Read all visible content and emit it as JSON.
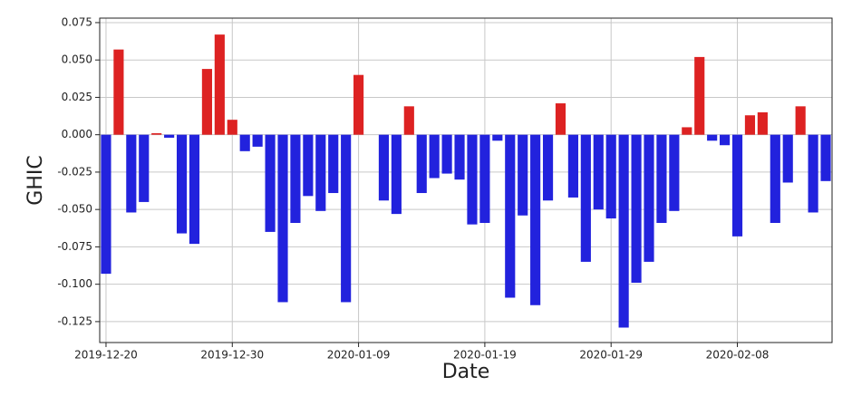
{
  "chart_data": {
    "type": "bar",
    "x": [
      "2019-12-20",
      "2019-12-21",
      "2019-12-22",
      "2019-12-23",
      "2019-12-24",
      "2019-12-25",
      "2019-12-26",
      "2019-12-27",
      "2019-12-28",
      "2019-12-29",
      "2019-12-30",
      "2019-12-31",
      "2020-01-01",
      "2020-01-02",
      "2020-01-03",
      "2020-01-04",
      "2020-01-05",
      "2020-01-06",
      "2020-01-07",
      "2020-01-08",
      "2020-01-09",
      "2020-01-10",
      "2020-01-11",
      "2020-01-12",
      "2020-01-13",
      "2020-01-14",
      "2020-01-15",
      "2020-01-16",
      "2020-01-17",
      "2020-01-18",
      "2020-01-19",
      "2020-01-20",
      "2020-01-21",
      "2020-01-22",
      "2020-01-23",
      "2020-01-24",
      "2020-01-25",
      "2020-01-26",
      "2020-01-27",
      "2020-01-28",
      "2020-01-29",
      "2020-01-30",
      "2020-01-31",
      "2020-02-01",
      "2020-02-02",
      "2020-02-03",
      "2020-02-04",
      "2020-02-05",
      "2020-02-06",
      "2020-02-07",
      "2020-02-08",
      "2020-02-09",
      "2020-02-10",
      "2020-02-11",
      "2020-02-12",
      "2020-02-13",
      "2020-02-14",
      "2020-02-15"
    ],
    "values": [
      -0.093,
      0.057,
      -0.052,
      -0.045,
      0.001,
      -0.002,
      -0.066,
      -0.073,
      0.044,
      0.067,
      0.01,
      -0.011,
      -0.008,
      -0.065,
      -0.112,
      -0.059,
      -0.041,
      -0.051,
      -0.039,
      -0.112,
      0.04,
      0,
      -0.044,
      -0.053,
      0.019,
      -0.039,
      -0.029,
      -0.026,
      -0.03,
      -0.06,
      -0.059,
      -0.004,
      -0.109,
      -0.054,
      -0.114,
      -0.044,
      0.021,
      -0.042,
      -0.085,
      -0.05,
      -0.056,
      -0.129,
      -0.099,
      -0.085,
      -0.059,
      -0.051,
      0.005,
      0.052,
      -0.004,
      -0.007,
      -0.068,
      0.013,
      0.015,
      -0.059,
      -0.032,
      0.019,
      -0.052,
      -0.031
    ],
    "positive_color": "#dd2222",
    "negative_color": "#2222dd",
    "xlabel": "Date",
    "ylabel": "GHIC",
    "xlim": [
      "2019-12-19T12:00",
      "2020-02-15T12:00"
    ],
    "xticks": [
      "2019-12-20",
      "2019-12-30",
      "2020-01-09",
      "2020-01-19",
      "2020-01-29",
      "2020-02-08"
    ],
    "ylim": [
      -0.139,
      0.078
    ],
    "yticks": [
      0.075,
      {
        "value": 0.05,
        "label": "0.050"
      },
      0.025,
      {
        "value": 0,
        "label": "0.000"
      },
      -0.025,
      {
        "value": -0.05,
        "label": "-0.050"
      },
      -0.075,
      {
        "value": -0.1,
        "label": "-0.100"
      },
      -0.125
    ],
    "grid": true
  }
}
